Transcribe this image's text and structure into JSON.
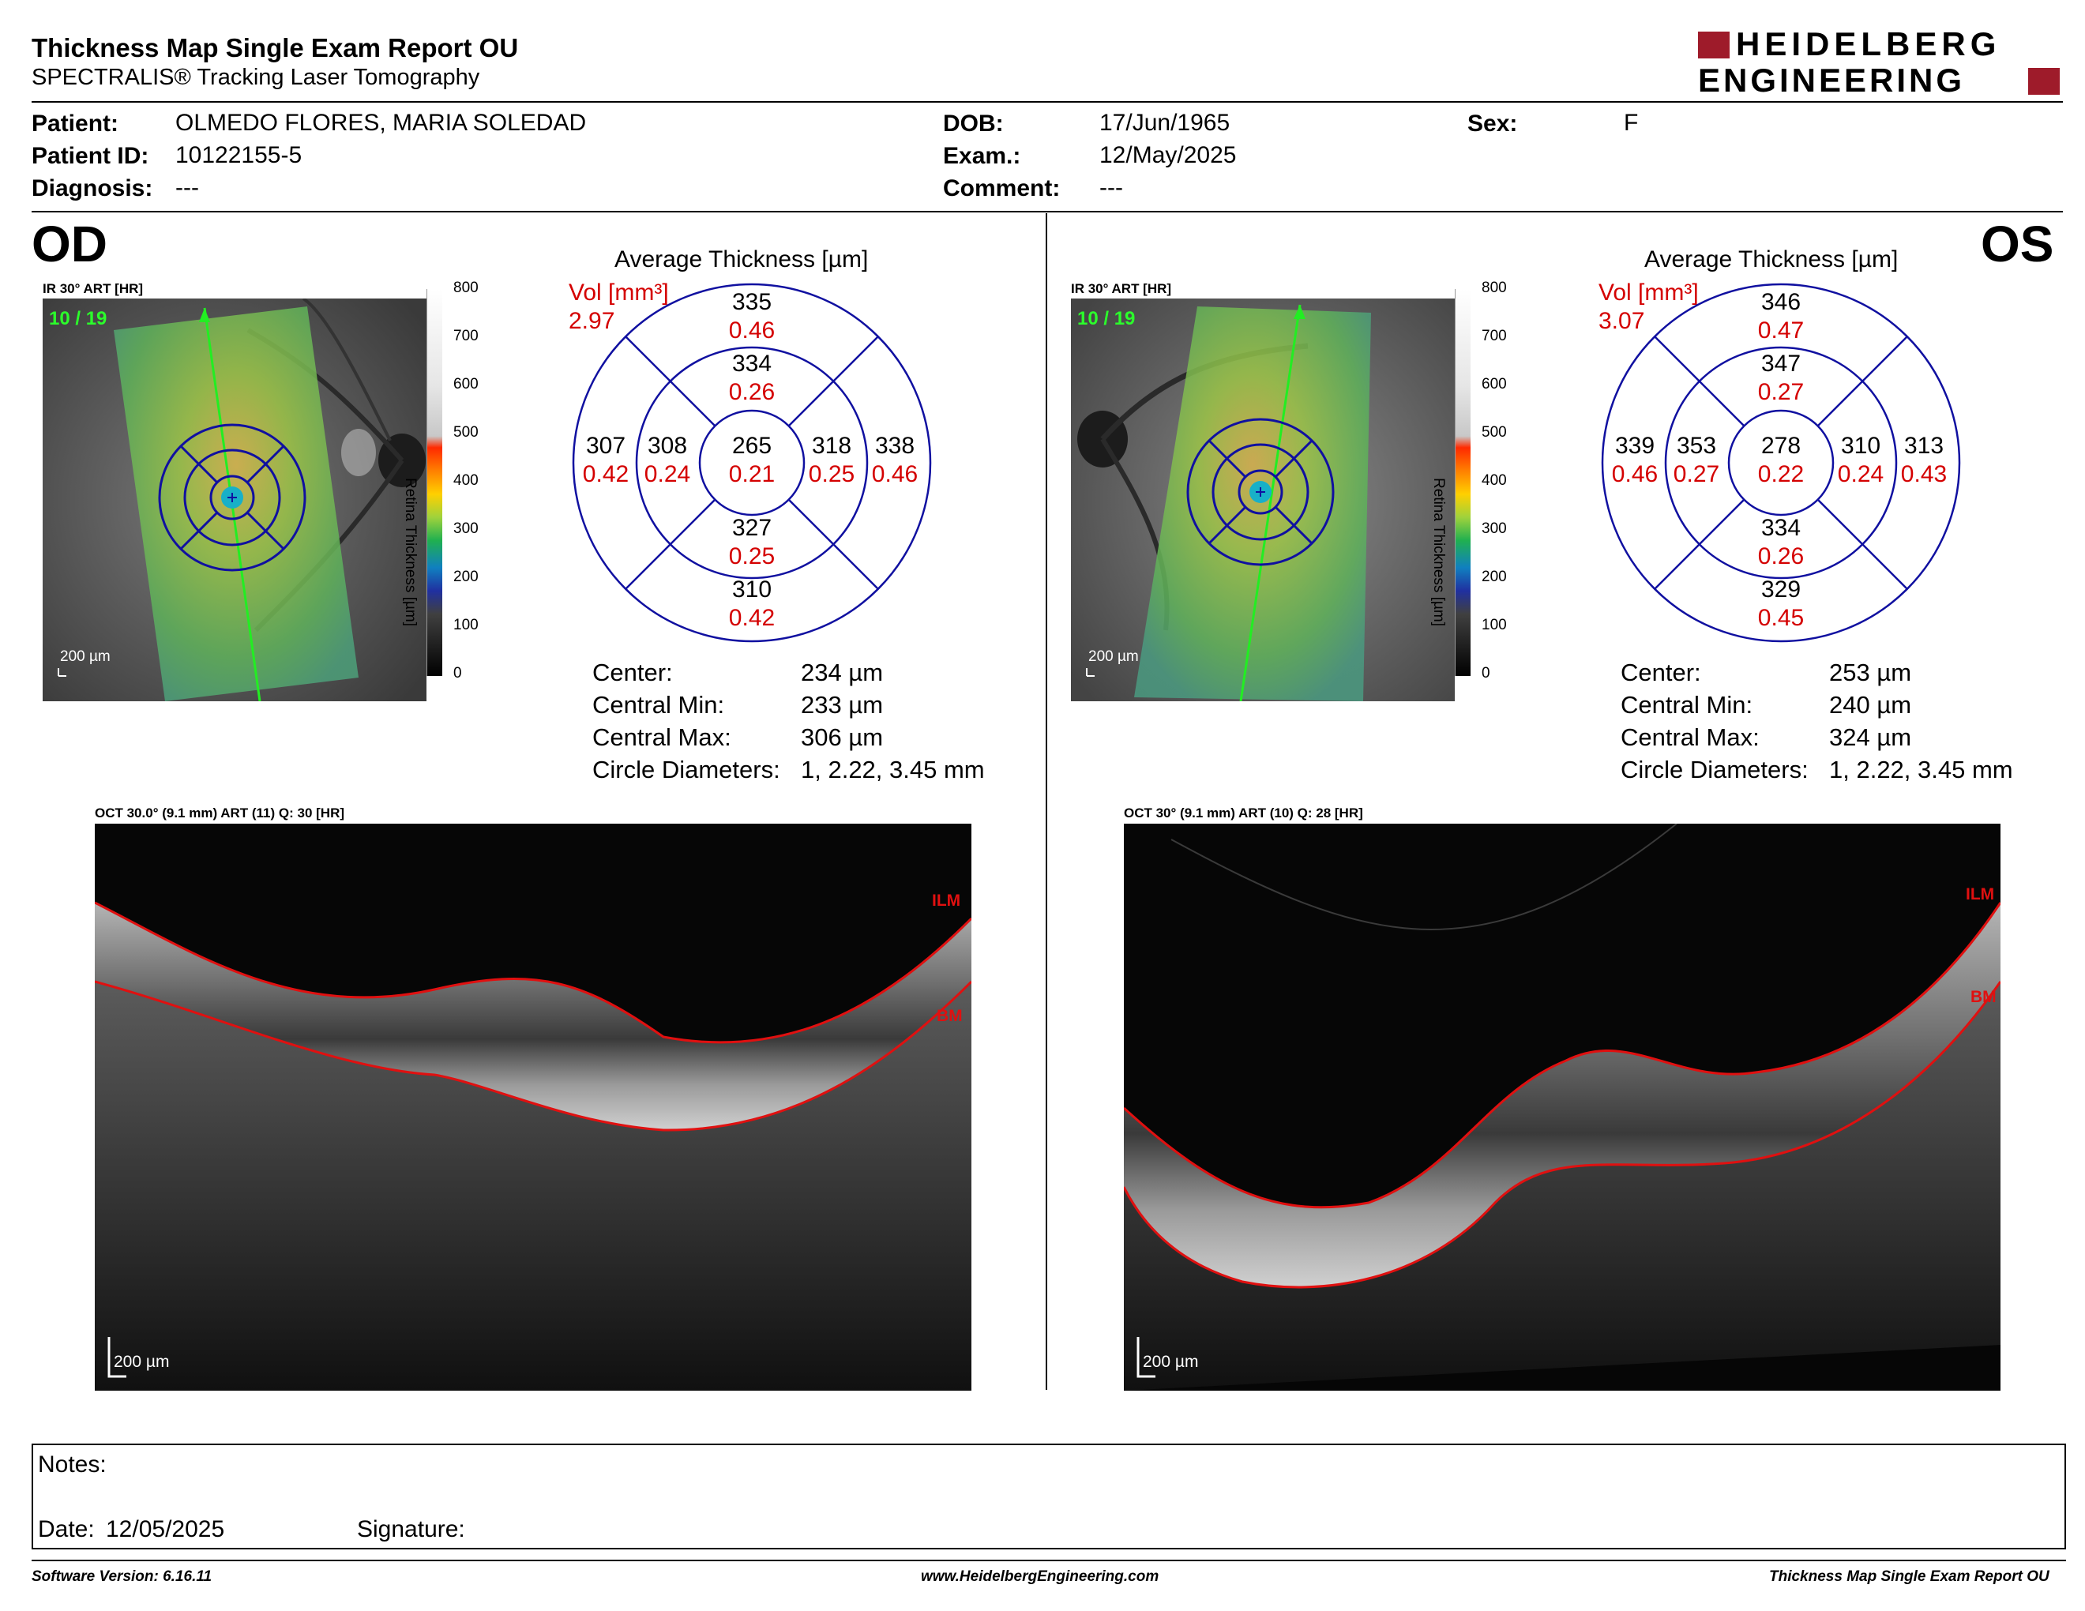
{
  "header": {
    "title": "Thickness Map Single Exam Report OU",
    "subtitle": "SPECTRALIS® Tracking Laser Tomography",
    "logo_line1": "HEIDELBERG",
    "logo_line2": "ENGINEERING"
  },
  "patient": {
    "patient_label": "Patient:",
    "patient_value": "OLMEDO FLORES, MARIA SOLEDAD",
    "id_label": "Patient ID:",
    "id_value": "10122155-5",
    "diagnosis_label": "Diagnosis:",
    "diagnosis_value": "---",
    "dob_label": "DOB:",
    "dob_value": "17/Jun/1965",
    "exam_label": "Exam.:",
    "exam_value": "12/May/2025",
    "comment_label": "Comment:",
    "comment_value": "---",
    "sex_label": "Sex:",
    "sex_value": "F"
  },
  "colorbar": {
    "ticks": [
      "800",
      "700",
      "600",
      "500",
      "400",
      "300",
      "200",
      "100",
      "0"
    ],
    "label": "Retina Thickness [µm]"
  },
  "od": {
    "eye": "OD",
    "ir_label": "IR 30° ART [HR]",
    "ir_frames": "10 / 19",
    "scale": "200 µm",
    "avg_title": "Average Thickness [µm]",
    "vol_label": "Vol [mm³]",
    "vol_value": "2.97",
    "sectors": {
      "outer_top": {
        "t": "335",
        "v": "0.46"
      },
      "inner_top": {
        "t": "334",
        "v": "0.26"
      },
      "outer_left": {
        "t": "307",
        "v": "0.42"
      },
      "inner_left": {
        "t": "308",
        "v": "0.24"
      },
      "center": {
        "t": "265",
        "v": "0.21"
      },
      "inner_right": {
        "t": "318",
        "v": "0.25"
      },
      "outer_right": {
        "t": "338",
        "v": "0.46"
      },
      "inner_bottom": {
        "t": "327",
        "v": "0.25"
      },
      "outer_bottom": {
        "t": "310",
        "v": "0.42"
      }
    },
    "stats": {
      "center_label": "Center:",
      "center_value": "234 µm",
      "min_label": "Central Min:",
      "min_value": "233 µm",
      "max_label": "Central Max:",
      "max_value": "306 µm",
      "diam_label": "Circle Diameters:",
      "diam_value": "1, 2.22, 3.45 mm"
    },
    "oct_label": "OCT 30.0° (9.1 mm) ART (11) Q: 30 [HR]",
    "ilm": "ILM",
    "bm": "BM",
    "oct_scale": "200 µm"
  },
  "os": {
    "eye": "OS",
    "ir_label": "IR 30° ART [HR]",
    "ir_frames": "10 / 19",
    "scale": "200 µm",
    "avg_title": "Average Thickness [µm]",
    "vol_label": "Vol [mm³]",
    "vol_value": "3.07",
    "sectors": {
      "outer_top": {
        "t": "346",
        "v": "0.47"
      },
      "inner_top": {
        "t": "347",
        "v": "0.27"
      },
      "outer_left": {
        "t": "339",
        "v": "0.46"
      },
      "inner_left": {
        "t": "353",
        "v": "0.27"
      },
      "center": {
        "t": "278",
        "v": "0.22"
      },
      "inner_right": {
        "t": "310",
        "v": "0.24"
      },
      "outer_right": {
        "t": "313",
        "v": "0.43"
      },
      "inner_bottom": {
        "t": "334",
        "v": "0.26"
      },
      "outer_bottom": {
        "t": "329",
        "v": "0.45"
      }
    },
    "stats": {
      "center_label": "Center:",
      "center_value": "253 µm",
      "min_label": "Central Min:",
      "min_value": "240 µm",
      "max_label": "Central Max:",
      "max_value": "324 µm",
      "diam_label": "Circle Diameters:",
      "diam_value": "1, 2.22, 3.45 mm"
    },
    "oct_label": "OCT 30° (9.1 mm) ART (10) Q: 28 [HR]",
    "ilm": "ILM",
    "bm": "BM",
    "oct_scale": "200 µm"
  },
  "notes": {
    "notes_label": "Notes:",
    "date_label": "Date:",
    "date_value": "12/05/2025",
    "signature_label": "Signature:"
  },
  "footer": {
    "software": "Software Version: 6.16.11",
    "website": "www.HeidelbergEngineering.com",
    "report": "Thickness Map Single Exam Report OU"
  },
  "colors": {
    "accent_red": "#d40000",
    "grid_blue": "#1010a0",
    "logo_red": "#9e1b2a"
  }
}
